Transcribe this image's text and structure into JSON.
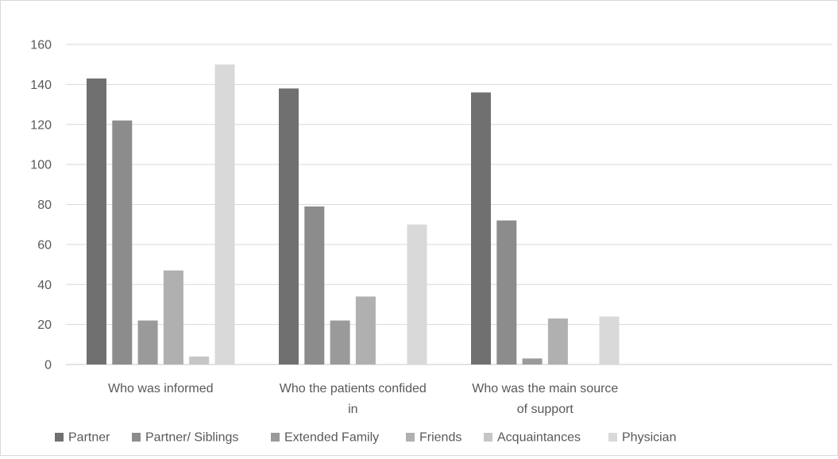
{
  "chart_data": {
    "type": "bar",
    "categories": [
      [
        "Who was informed"
      ],
      [
        "Who the patients confided",
        "in"
      ],
      [
        "Who was the main source",
        "of support"
      ]
    ],
    "series": [
      {
        "name": "Partner",
        "color": "#707070",
        "values": [
          143,
          138,
          136
        ]
      },
      {
        "name": "Partner/ Siblings",
        "color": "#8c8c8c",
        "values": [
          122,
          79,
          72
        ]
      },
      {
        "name": "Extended Family",
        "color": "#9a9a9a",
        "values": [
          22,
          22,
          3
        ]
      },
      {
        "name": "Friends",
        "color": "#b0b0b0",
        "values": [
          47,
          34,
          23
        ]
      },
      {
        "name": "Acquaintances",
        "color": "#c6c6c6",
        "values": [
          4,
          0,
          0
        ]
      },
      {
        "name": "Physician",
        "color": "#d9d9d9",
        "values": [
          150,
          70,
          24
        ]
      }
    ],
    "yticks": [
      0,
      20,
      40,
      60,
      80,
      100,
      120,
      140,
      160
    ],
    "ylim": [
      0,
      160
    ],
    "grid": true,
    "legend_position": "bottom"
  }
}
